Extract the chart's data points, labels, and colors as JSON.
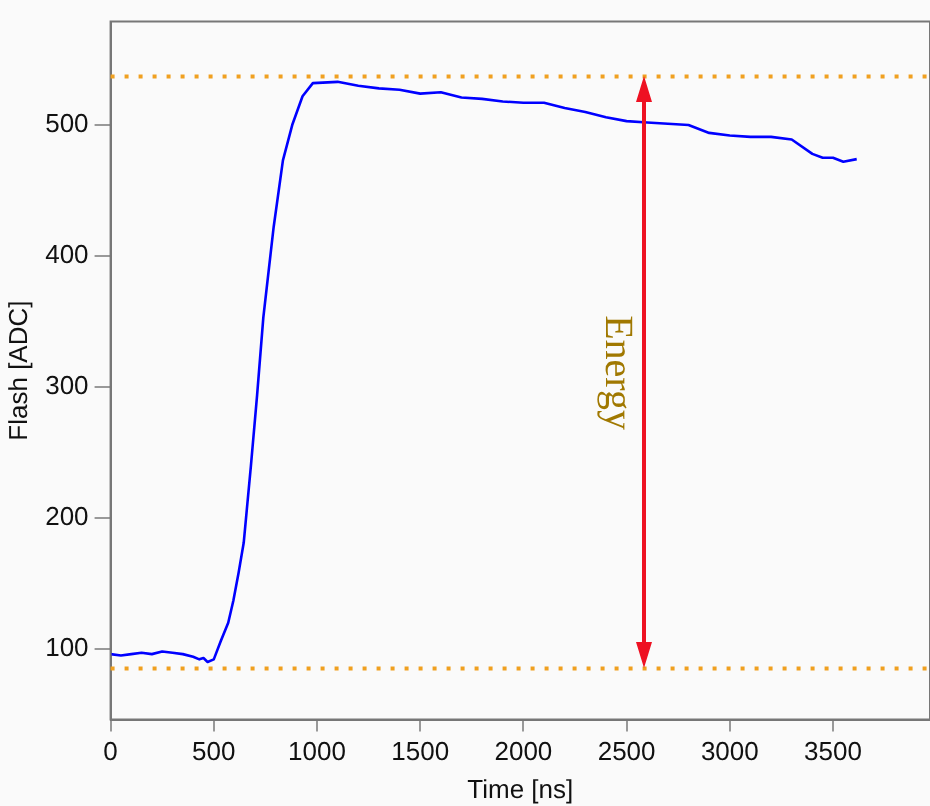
{
  "chart_data": {
    "type": "line",
    "xlabel": "Time [ns]",
    "ylabel": "Flash [ADC]",
    "xlim": [
      0,
      3970
    ],
    "ylim": [
      46,
      579
    ],
    "xticks": [
      0,
      500,
      1000,
      1500,
      2000,
      2500,
      3000,
      3500
    ],
    "yticks": [
      100,
      200,
      300,
      400,
      500
    ],
    "x": [
      0,
      50,
      100,
      150,
      200,
      250,
      300,
      350,
      400,
      430,
      450,
      470,
      500,
      534,
      570,
      595,
      620,
      645,
      680,
      710,
      740,
      790,
      835,
      880,
      930,
      980,
      1100,
      1200,
      1300,
      1400,
      1500,
      1600,
      1700,
      1800,
      1900,
      2000,
      2100,
      2200,
      2300,
      2400,
      2500,
      2600,
      2700,
      2800,
      2900,
      3000,
      3100,
      3200,
      3300,
      3400,
      3450,
      3500,
      3550,
      3615
    ],
    "series": [
      {
        "color": "#0000ff",
        "values": [
          96,
          95,
          96,
          97,
          96,
          98,
          97,
          96,
          94,
          92,
          93,
          90,
          92,
          106,
          120,
          137,
          158,
          181,
          240,
          294,
          353,
          422,
          473,
          500,
          522,
          532,
          533,
          530,
          528,
          527,
          524,
          525,
          521,
          520,
          518,
          517,
          517,
          513,
          510,
          506,
          503,
          502,
          501,
          500,
          494,
          492,
          491,
          491,
          489,
          478,
          475,
          475,
          472,
          474
        ]
      }
    ],
    "marker": "none",
    "line_style": "solid",
    "grid": false,
    "legend": false,
    "ref_lines": [
      {
        "axis": "y",
        "value": 537,
        "color": "#f0a020",
        "line_style": "dotted"
      },
      {
        "axis": "y",
        "value": 85,
        "color": "#f0a020",
        "line_style": "dotted"
      }
    ],
    "annotations": [
      "Energy"
    ]
  }
}
